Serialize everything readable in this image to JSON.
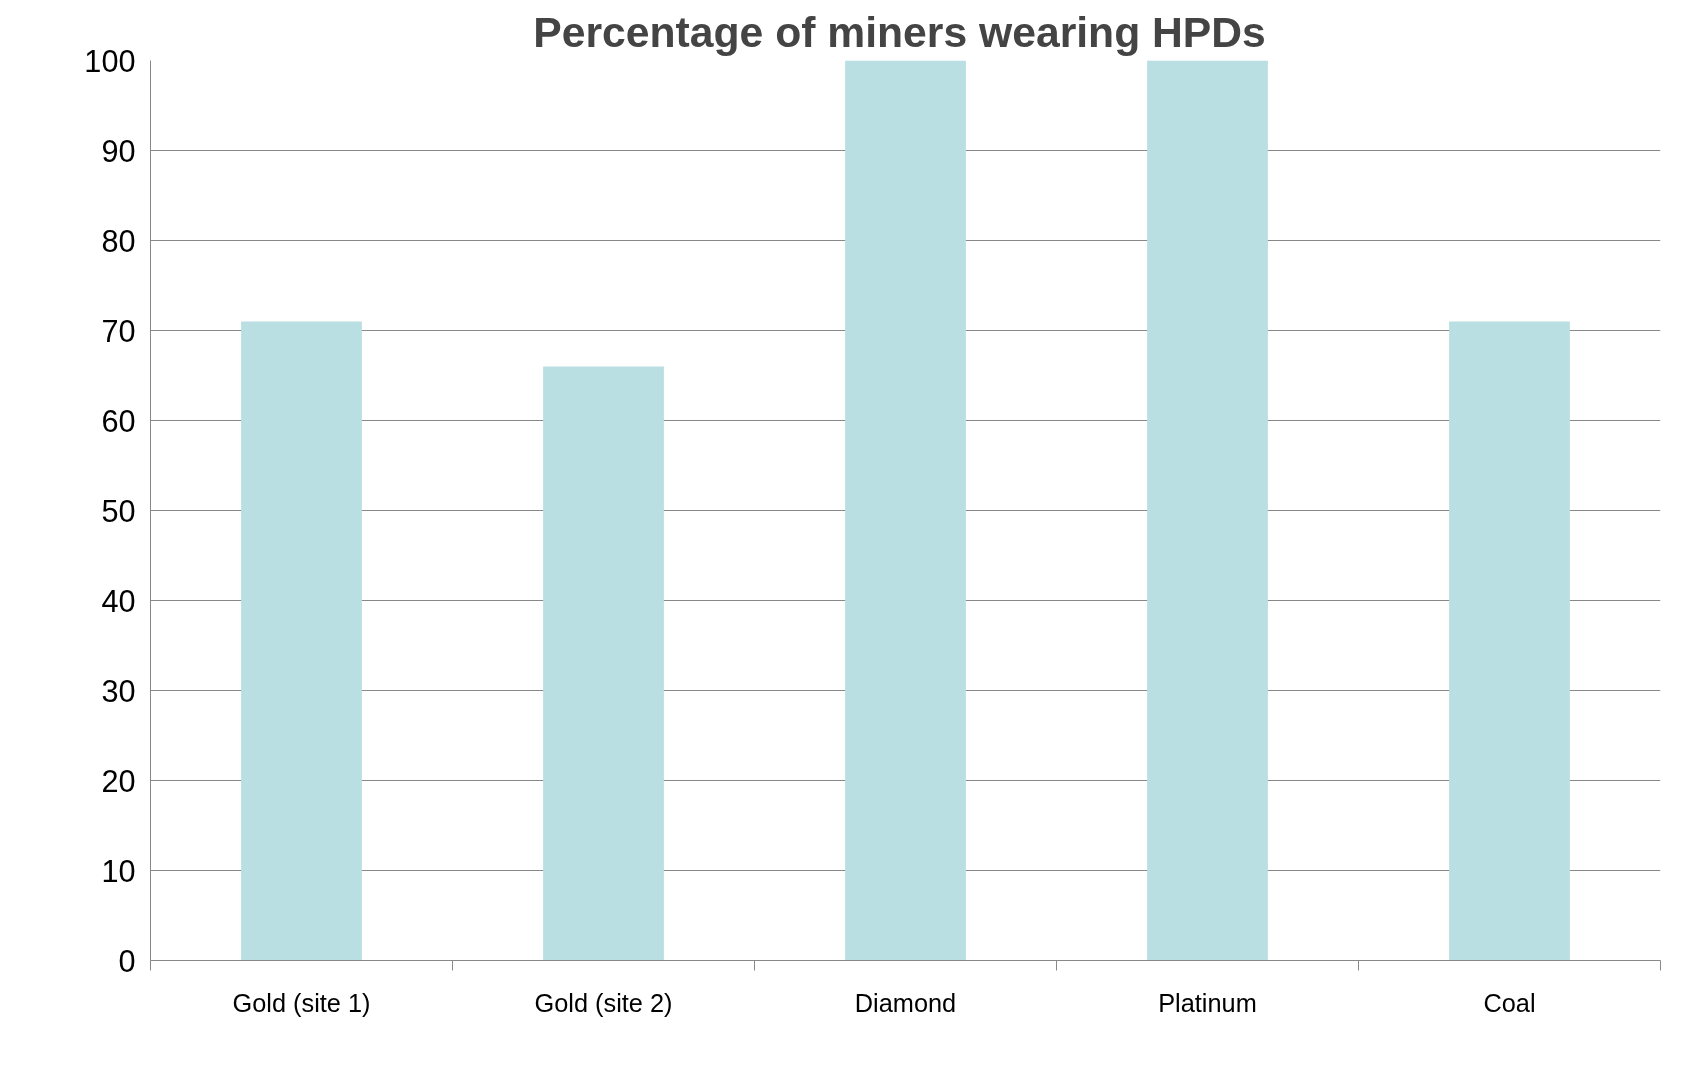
{
  "chart_data": {
    "type": "bar",
    "title": "Percentage  of miners wearing HPDs",
    "categories": [
      "Gold (site 1)",
      "Gold (site 2)",
      "Diamond",
      "Platinum",
      "Coal"
    ],
    "values": [
      71,
      66,
      100,
      100,
      71
    ],
    "color": "#b9dfe2",
    "ylim": [
      0,
      100
    ],
    "yticks": [
      0,
      10,
      20,
      30,
      40,
      50,
      60,
      70,
      80,
      90,
      100
    ],
    "grid": "y"
  }
}
